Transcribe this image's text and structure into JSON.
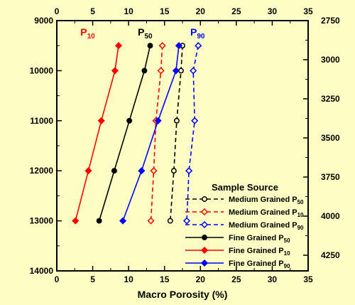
{
  "chart_data": {
    "type": "line",
    "xlabel": "Macro Porosity (%)",
    "x_ticks": [
      "0",
      "5",
      "10",
      "15",
      "20",
      "25",
      "30",
      "35"
    ],
    "xlim": [
      0,
      35
    ],
    "y_left_ticks": [
      "9000",
      "10000",
      "11000",
      "12000",
      "13000",
      "14000"
    ],
    "ylim_left": [
      9000,
      14000
    ],
    "y_right_ticks": [
      "2750",
      "3000",
      "3250",
      "3500",
      "3750",
      "4000",
      "4250"
    ],
    "ylim_right": [
      2750,
      4350
    ],
    "y_inverted": true,
    "grid": false,
    "legend": {
      "title": "Sample Source",
      "placement": "bottom-right"
    },
    "curve_labels": [
      {
        "text": "P",
        "sub": "10",
        "color": "#ff0000",
        "x": 4.3,
        "y": 9300
      },
      {
        "text": "P",
        "sub": "50",
        "color": "#000000",
        "x": 12.3,
        "y": 9300
      },
      {
        "text": "P",
        "sub": "90",
        "color": "#0000ff",
        "x": 19.6,
        "y": 9300
      }
    ],
    "series": [
      {
        "name": "Medium Grained P",
        "sub": "50",
        "color": "#000000",
        "dash": true,
        "marker": "circle",
        "x": [
          17.5,
          17.3,
          16.7,
          16.3,
          15.8
        ],
        "y": [
          9500,
          10000,
          11000,
          12000,
          13000
        ]
      },
      {
        "name": "Medium Grained P",
        "sub": "10",
        "color": "#ff0000",
        "dash": true,
        "marker": "diamond",
        "x": [
          14.7,
          14.5,
          13.8,
          13.5,
          13.1
        ],
        "y": [
          9500,
          10000,
          11000,
          12000,
          13000
        ]
      },
      {
        "name": "Medium Grained P",
        "sub": "90",
        "color": "#0000ff",
        "dash": true,
        "marker": "diamond",
        "x": [
          19.7,
          19.0,
          19.2,
          18.4,
          18.1
        ],
        "y": [
          9500,
          10000,
          11000,
          12000,
          13000
        ]
      },
      {
        "name": "Fine Grained P",
        "sub": "50",
        "color": "#000000",
        "dash": false,
        "marker": "circle",
        "x": [
          13.0,
          12.2,
          10.1,
          8.0,
          5.9
        ],
        "y": [
          9500,
          10000,
          11000,
          12000,
          13000
        ]
      },
      {
        "name": "Fine Grained P",
        "sub": "10",
        "color": "#ff0000",
        "dash": false,
        "marker": "diamond",
        "x": [
          8.6,
          8.1,
          6.2,
          4.4,
          2.6
        ],
        "y": [
          9500,
          10000,
          11000,
          12000,
          13000
        ]
      },
      {
        "name": "Fine Grained P",
        "sub": "90",
        "color": "#0000ff",
        "dash": false,
        "marker": "diamond",
        "x": [
          17.0,
          16.6,
          14.1,
          11.8,
          9.2
        ],
        "y": [
          9500,
          10000,
          11000,
          12000,
          13000
        ]
      }
    ]
  }
}
